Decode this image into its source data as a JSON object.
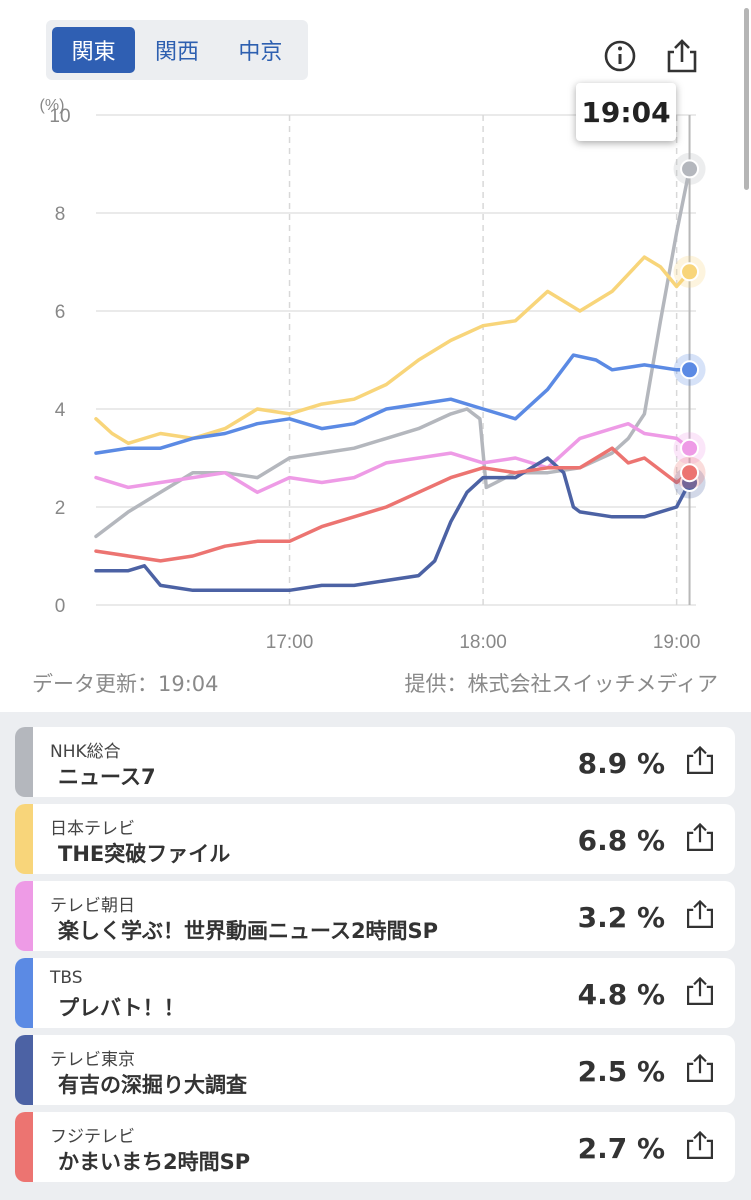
{
  "region_tabs": [
    {
      "label": "関東",
      "active": true
    },
    {
      "label": "関西",
      "active": false
    },
    {
      "label": "中京",
      "active": false
    }
  ],
  "icons": {
    "info": "info-icon",
    "share": "share-icon"
  },
  "tooltip_time": "19:04",
  "footer": {
    "updated": "データ更新：19:04",
    "provider": "提供：株式会社スイッチメディア"
  },
  "chart_data": {
    "type": "line",
    "y_unit": "(%)",
    "y_ticks": [
      "0",
      "2",
      "4",
      "6",
      "8",
      "10"
    ],
    "ylim": [
      0,
      10
    ],
    "x_range": [
      "16:00",
      "19:06"
    ],
    "x_ticks": [
      "17:00",
      "18:00",
      "19:00"
    ],
    "grid": true,
    "cursor_time": "19:04",
    "series": [
      {
        "name": "NHK総合",
        "color": "#b4b7bd",
        "points": [
          [
            "16:00",
            1.4
          ],
          [
            "16:10",
            1.9
          ],
          [
            "16:20",
            2.3
          ],
          [
            "16:30",
            2.7
          ],
          [
            "16:40",
            2.7
          ],
          [
            "16:50",
            2.6
          ],
          [
            "17:00",
            3.0
          ],
          [
            "17:10",
            3.1
          ],
          [
            "17:20",
            3.2
          ],
          [
            "17:30",
            3.4
          ],
          [
            "17:40",
            3.6
          ],
          [
            "17:50",
            3.9
          ],
          [
            "17:55",
            4.0
          ],
          [
            "17:59",
            3.8
          ],
          [
            "18:01",
            2.4
          ],
          [
            "18:10",
            2.7
          ],
          [
            "18:20",
            2.7
          ],
          [
            "18:30",
            2.8
          ],
          [
            "18:40",
            3.1
          ],
          [
            "18:45",
            3.4
          ],
          [
            "18:50",
            3.9
          ],
          [
            "18:55",
            5.8
          ],
          [
            "19:00",
            7.6
          ],
          [
            "19:04",
            8.9
          ]
        ]
      },
      {
        "name": "日本テレビ",
        "color": "#f8d57a",
        "points": [
          [
            "16:00",
            3.8
          ],
          [
            "16:05",
            3.5
          ],
          [
            "16:10",
            3.3
          ],
          [
            "16:20",
            3.5
          ],
          [
            "16:30",
            3.4
          ],
          [
            "16:40",
            3.6
          ],
          [
            "16:50",
            4.0
          ],
          [
            "17:00",
            3.9
          ],
          [
            "17:10",
            4.1
          ],
          [
            "17:20",
            4.2
          ],
          [
            "17:30",
            4.5
          ],
          [
            "17:40",
            5.0
          ],
          [
            "17:50",
            5.4
          ],
          [
            "18:00",
            5.7
          ],
          [
            "18:10",
            5.8
          ],
          [
            "18:20",
            6.4
          ],
          [
            "18:30",
            6.0
          ],
          [
            "18:40",
            6.4
          ],
          [
            "18:50",
            7.1
          ],
          [
            "18:55",
            6.9
          ],
          [
            "19:00",
            6.5
          ],
          [
            "19:04",
            6.8
          ]
        ]
      },
      {
        "name": "テレビ朝日",
        "color": "#ee9be6",
        "points": [
          [
            "16:00",
            2.6
          ],
          [
            "16:10",
            2.4
          ],
          [
            "16:20",
            2.5
          ],
          [
            "16:30",
            2.6
          ],
          [
            "16:40",
            2.7
          ],
          [
            "16:50",
            2.3
          ],
          [
            "17:00",
            2.6
          ],
          [
            "17:10",
            2.5
          ],
          [
            "17:20",
            2.6
          ],
          [
            "17:30",
            2.9
          ],
          [
            "17:40",
            3.0
          ],
          [
            "17:50",
            3.1
          ],
          [
            "18:00",
            2.9
          ],
          [
            "18:10",
            3.0
          ],
          [
            "18:20",
            2.8
          ],
          [
            "18:30",
            3.4
          ],
          [
            "18:40",
            3.6
          ],
          [
            "18:45",
            3.7
          ],
          [
            "18:50",
            3.5
          ],
          [
            "19:00",
            3.4
          ],
          [
            "19:04",
            3.2
          ]
        ]
      },
      {
        "name": "TBS",
        "color": "#5b8ae4",
        "points": [
          [
            "16:00",
            3.1
          ],
          [
            "16:10",
            3.2
          ],
          [
            "16:20",
            3.2
          ],
          [
            "16:30",
            3.4
          ],
          [
            "16:40",
            3.5
          ],
          [
            "16:50",
            3.7
          ],
          [
            "17:00",
            3.8
          ],
          [
            "17:10",
            3.6
          ],
          [
            "17:20",
            3.7
          ],
          [
            "17:30",
            4.0
          ],
          [
            "17:40",
            4.1
          ],
          [
            "17:50",
            4.2
          ],
          [
            "18:00",
            4.0
          ],
          [
            "18:10",
            3.8
          ],
          [
            "18:20",
            4.4
          ],
          [
            "18:28",
            5.1
          ],
          [
            "18:35",
            5.0
          ],
          [
            "18:40",
            4.8
          ],
          [
            "18:50",
            4.9
          ],
          [
            "19:00",
            4.8
          ],
          [
            "19:04",
            4.8
          ]
        ]
      },
      {
        "name": "テレビ東京",
        "color": "#4c62a4",
        "points": [
          [
            "16:00",
            0.7
          ],
          [
            "16:10",
            0.7
          ],
          [
            "16:15",
            0.8
          ],
          [
            "16:20",
            0.4
          ],
          [
            "16:30",
            0.3
          ],
          [
            "16:40",
            0.3
          ],
          [
            "16:50",
            0.3
          ],
          [
            "17:00",
            0.3
          ],
          [
            "17:10",
            0.4
          ],
          [
            "17:20",
            0.4
          ],
          [
            "17:30",
            0.5
          ],
          [
            "17:40",
            0.6
          ],
          [
            "17:45",
            0.9
          ],
          [
            "17:50",
            1.7
          ],
          [
            "17:55",
            2.3
          ],
          [
            "18:00",
            2.6
          ],
          [
            "18:10",
            2.6
          ],
          [
            "18:15",
            2.8
          ],
          [
            "18:20",
            3.0
          ],
          [
            "18:25",
            2.7
          ],
          [
            "18:28",
            2.0
          ],
          [
            "18:30",
            1.9
          ],
          [
            "18:40",
            1.8
          ],
          [
            "18:50",
            1.8
          ],
          [
            "19:00",
            2.0
          ],
          [
            "19:04",
            2.5
          ]
        ]
      },
      {
        "name": "フジテレビ",
        "color": "#ec7471",
        "points": [
          [
            "16:00",
            1.1
          ],
          [
            "16:10",
            1.0
          ],
          [
            "16:20",
            0.9
          ],
          [
            "16:30",
            1.0
          ],
          [
            "16:40",
            1.2
          ],
          [
            "16:50",
            1.3
          ],
          [
            "17:00",
            1.3
          ],
          [
            "17:10",
            1.6
          ],
          [
            "17:20",
            1.8
          ],
          [
            "17:30",
            2.0
          ],
          [
            "17:40",
            2.3
          ],
          [
            "17:50",
            2.6
          ],
          [
            "18:00",
            2.8
          ],
          [
            "18:10",
            2.7
          ],
          [
            "18:20",
            2.8
          ],
          [
            "18:30",
            2.8
          ],
          [
            "18:40",
            3.2
          ],
          [
            "18:45",
            2.9
          ],
          [
            "18:50",
            3.0
          ],
          [
            "19:00",
            2.5
          ],
          [
            "19:04",
            2.7
          ]
        ]
      }
    ]
  },
  "channels": [
    {
      "name": "NHK総合",
      "program": "ニュース7",
      "rating": "8.9 %",
      "color": "#b4b7bd"
    },
    {
      "name": "日本テレビ",
      "program": "THE突破ファイル",
      "rating": "6.8 %",
      "color": "#f8d57a"
    },
    {
      "name": "テレビ朝日",
      "program": "楽しく学ぶ！世界動画ニュース2時間SP",
      "rating": "3.2 %",
      "color": "#ee9be6"
    },
    {
      "name": "TBS",
      "program": "プレバト！！",
      "rating": "4.8 %",
      "color": "#5b8ae4"
    },
    {
      "name": "テレビ東京",
      "program": "有吉の深掘り大調査",
      "rating": "2.5 %",
      "color": "#4c62a4"
    },
    {
      "name": "フジテレビ",
      "program": "かまいまち2時間SP",
      "rating": "2.7 %",
      "color": "#ec7471"
    }
  ]
}
